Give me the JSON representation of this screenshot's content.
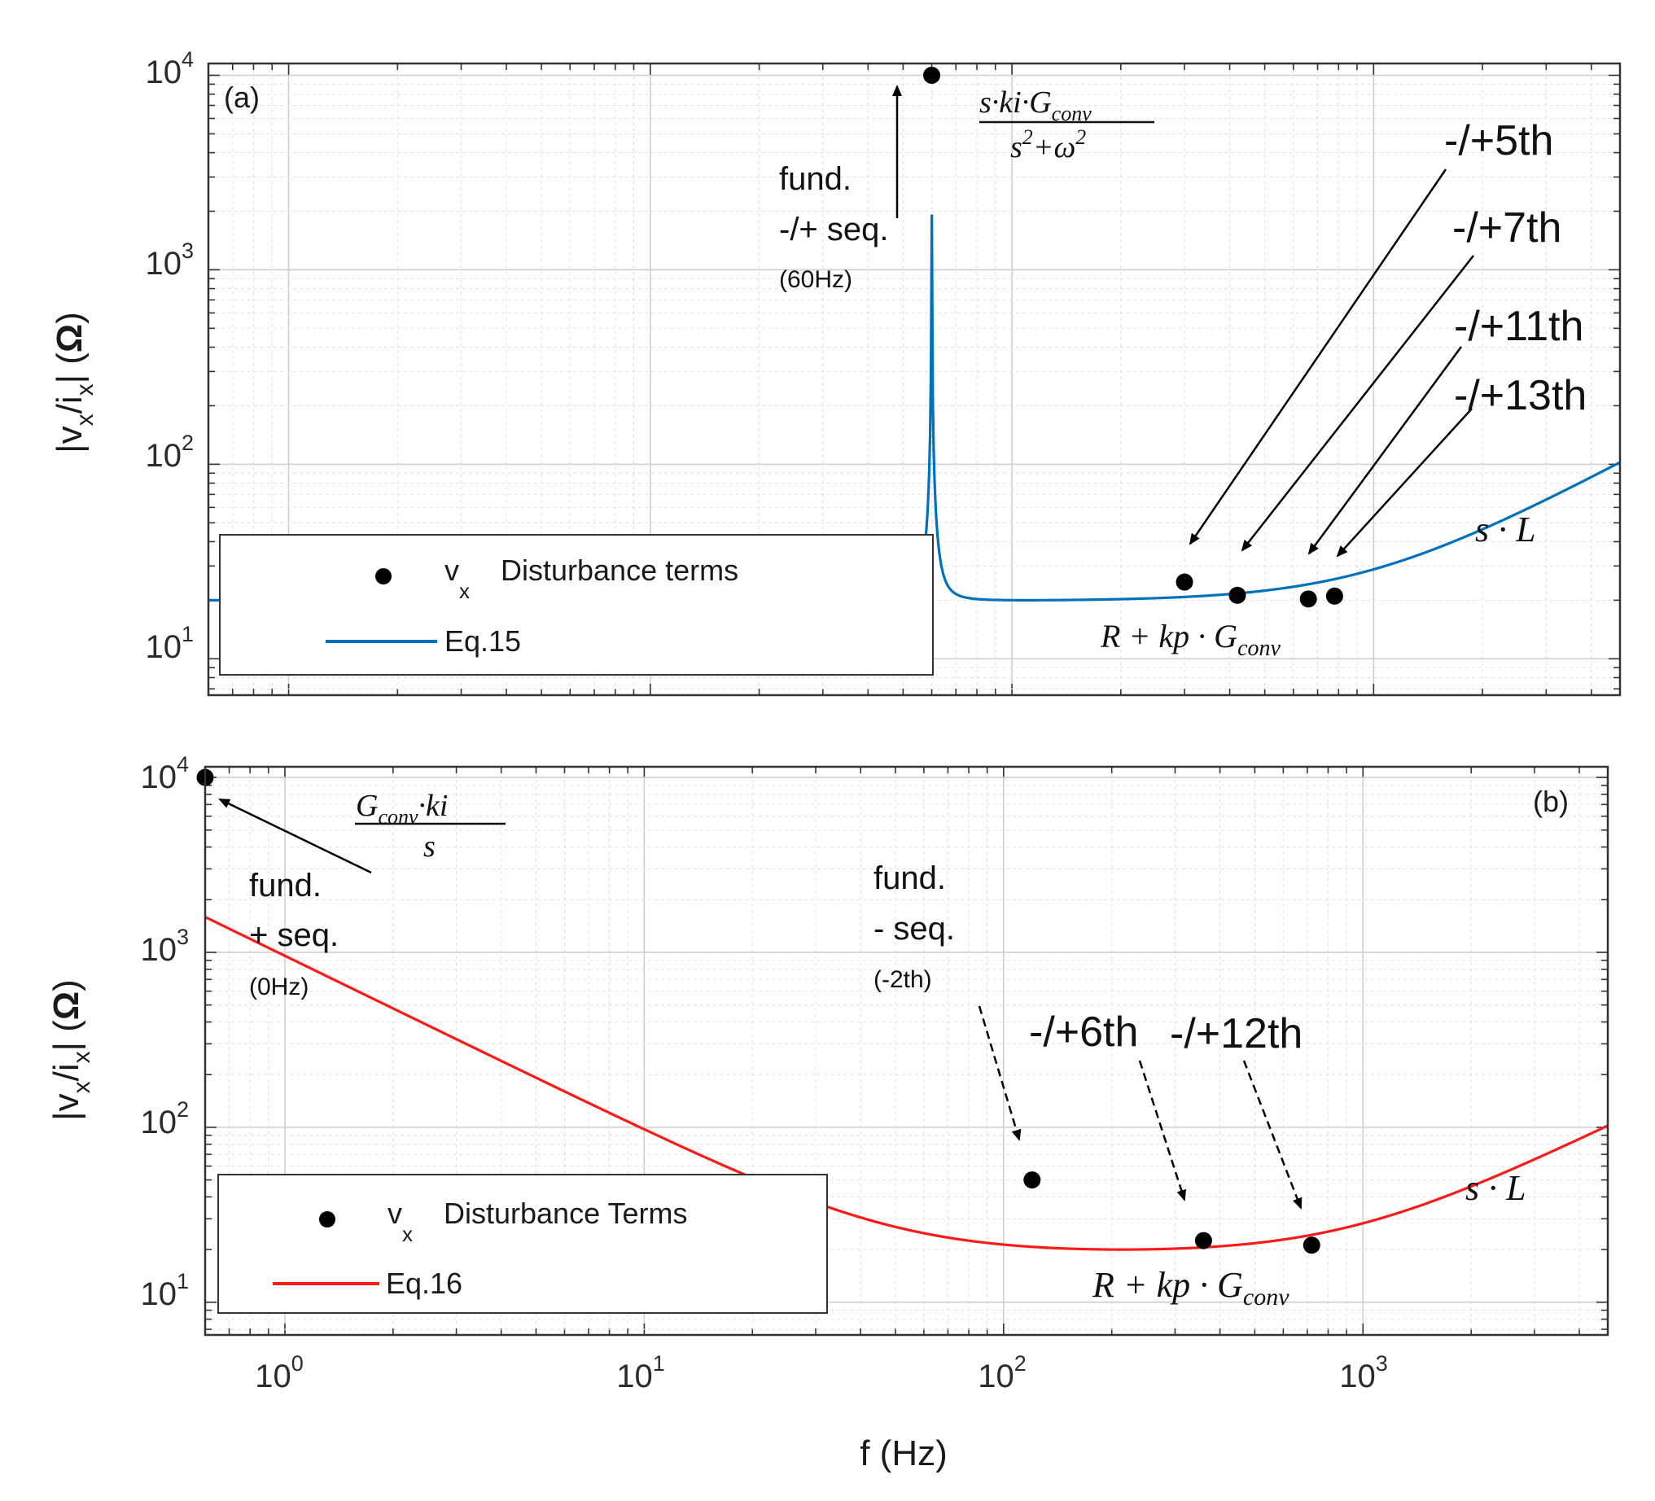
{
  "chart_data": [
    {
      "type": "line",
      "panel_label": "(a)",
      "xscale": "log",
      "yscale": "log",
      "xlim": [
        0.6,
        4800
      ],
      "ylim": [
        6.5,
        11500
      ],
      "ylabel_parts": [
        "|v",
        "x",
        "/i",
        "x",
        "| (",
        "Ω",
        ")"
      ],
      "y_ticks": [
        {
          "base": "10",
          "exp": "1"
        },
        {
          "base": "10",
          "exp": "2"
        },
        {
          "base": "10",
          "exp": "3"
        },
        {
          "base": "10",
          "exp": "4"
        }
      ],
      "grid": true,
      "legend": {
        "placement": "bottom-left",
        "entries": [
          {
            "kind": "marker",
            "symbol": "v",
            "subscript": "x",
            "label": "Disturbance terms",
            "color": "#000000"
          },
          {
            "kind": "line",
            "label": "Eq.15",
            "color": "#0072bd"
          }
        ]
      },
      "series": [
        {
          "name": "Eq.15",
          "color": "#0072bd",
          "model": "resonant",
          "params": {
            "f0": 60,
            "R": 20,
            "L": 0.00333,
            "K": 1100,
            "peak": 10000
          }
        }
      ],
      "points": [
        {
          "x": 60,
          "y": 10000
        },
        {
          "x": 300,
          "y": 24.8
        },
        {
          "x": 420,
          "y": 21.2
        },
        {
          "x": 660,
          "y": 20.3
        },
        {
          "x": 780,
          "y": 21.0
        }
      ],
      "annotations": {
        "fund_lines": [
          "fund.",
          "-/+ seq.",
          "(60Hz)"
        ],
        "h5": "-/+5th",
        "h7": "-/+7th",
        "h11": "-/+11th",
        "h13": "-/+13th",
        "peak_eq_num": "s·ki·G",
        "peak_eq_num_sub": "conv",
        "peak_eq_den": "s",
        "peak_eq_den_rest": "+ω",
        "peak_eq_den_exp": "2",
        "sl_main": "s · L",
        "rkp_main": "R + kp · G",
        "rkp_sub": "conv"
      }
    },
    {
      "type": "line",
      "panel_label": "(b)",
      "xscale": "log",
      "yscale": "log",
      "xlim": [
        0.6,
        4800
      ],
      "ylim": [
        6.5,
        11500
      ],
      "xlabel": "f (Hz)",
      "ylabel_parts": [
        "|v",
        "x",
        "/i",
        "x",
        "| (",
        "Ω",
        ")"
      ],
      "x_ticks": [
        {
          "base": "10",
          "exp": "0"
        },
        {
          "base": "10",
          "exp": "1"
        },
        {
          "base": "10",
          "exp": "2"
        },
        {
          "base": "10",
          "exp": "3"
        }
      ],
      "y_ticks": [
        {
          "base": "10",
          "exp": "1"
        },
        {
          "base": "10",
          "exp": "2"
        },
        {
          "base": "10",
          "exp": "3"
        },
        {
          "base": "10",
          "exp": "4"
        }
      ],
      "grid": true,
      "legend": {
        "placement": "bottom-left",
        "entries": [
          {
            "kind": "marker",
            "symbol": "v",
            "subscript": "x",
            "label": "Disturbance Terms",
            "color": "#000000"
          },
          {
            "kind": "line",
            "label": "Eq.16",
            "color": "#ff1a1a"
          }
        ]
      },
      "series": [
        {
          "name": "Eq.16",
          "color": "#ff1a1a",
          "model": "integrator",
          "params": {
            "R": 20,
            "L": 0.00333,
            "K": 6000
          }
        }
      ],
      "points": [
        {
          "x": 0.6,
          "y": 10000
        },
        {
          "x": 120,
          "y": 50
        },
        {
          "x": 360,
          "y": 22.5
        },
        {
          "x": 720,
          "y": 21.2
        }
      ],
      "annotations": {
        "fund_lines": [
          "fund.",
          "+ seq.",
          "(0Hz)"
        ],
        "fund2_lines": [
          "fund.",
          "- seq.",
          "(-2th)"
        ],
        "h6": "-/+6th",
        "h12": "-/+12th",
        "int_eq_num": "G",
        "int_eq_num_sub": "conv",
        "int_eq_num_rest": "·ki",
        "int_eq_den": "s",
        "sl_main": "s · L",
        "rkp_main": "R + kp · G",
        "rkp_sub": "conv"
      }
    }
  ]
}
